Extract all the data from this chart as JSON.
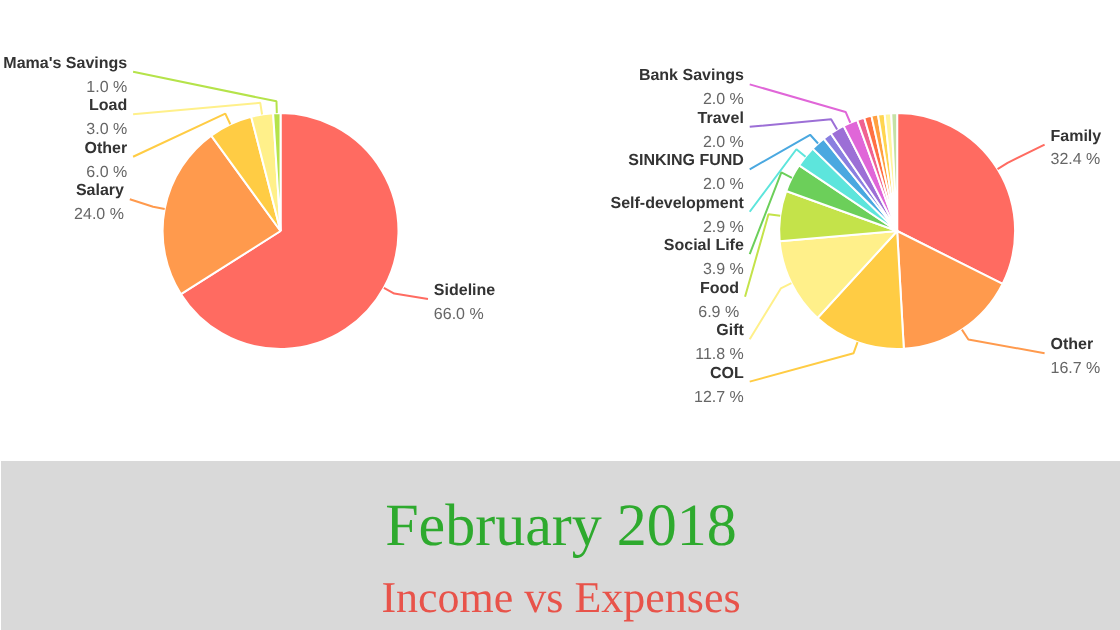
{
  "chart_data": [
    {
      "type": "pie",
      "categories": [
        "Sideline",
        "Salary",
        "Other",
        "Load",
        "Mama's Savings"
      ],
      "values": [
        66.0,
        24.0,
        6.0,
        3.0,
        1.0
      ],
      "value_labels": [
        "66.0 %",
        "24.0 %",
        "6.0 %",
        "3.0 %",
        "1.0 %"
      ],
      "colors": [
        "#ff6b61",
        "#ff9a4d",
        "#ffcc44",
        "#fff08a",
        "#b5e34a"
      ]
    },
    {
      "type": "pie",
      "categories": [
        "Family",
        "Other",
        "COL",
        "Gift",
        "Food",
        "Social Life",
        "Self-development",
        "SINKING FUND",
        null,
        "Travel",
        "Bank Savings",
        null,
        null,
        null,
        null,
        null,
        null
      ],
      "values": [
        32.4,
        16.7,
        12.7,
        11.8,
        6.9,
        3.9,
        2.9,
        2.0,
        1.2,
        2.0,
        2.0,
        1.0,
        1.0,
        0.9,
        0.9,
        0.9,
        0.8
      ],
      "value_labels": [
        "32.4 %",
        "16.7 %",
        "12.7 %",
        "11.8 %",
        "6.9 %",
        "3.9 %",
        "2.9 %",
        "2.0 %",
        null,
        "2.0 %",
        "2.0 %",
        null,
        null,
        null,
        null,
        null,
        null
      ],
      "colors": [
        "#ff6b61",
        "#ff9a4d",
        "#ffcc44",
        "#fff08a",
        "#c4e34a",
        "#6ccf5a",
        "#5de5dc",
        "#4aa8e0",
        "#8a7fe0",
        "#9c6fd6",
        "#e066d8",
        "#f06292",
        "#ff7043",
        "#ffa040",
        "#ffd54f",
        "#fff59d",
        "#c5e1a5"
      ]
    },
    {
      "type": "other",
      "title": "February 2018",
      "subtitle": "Income vs Expenses"
    }
  ]
}
